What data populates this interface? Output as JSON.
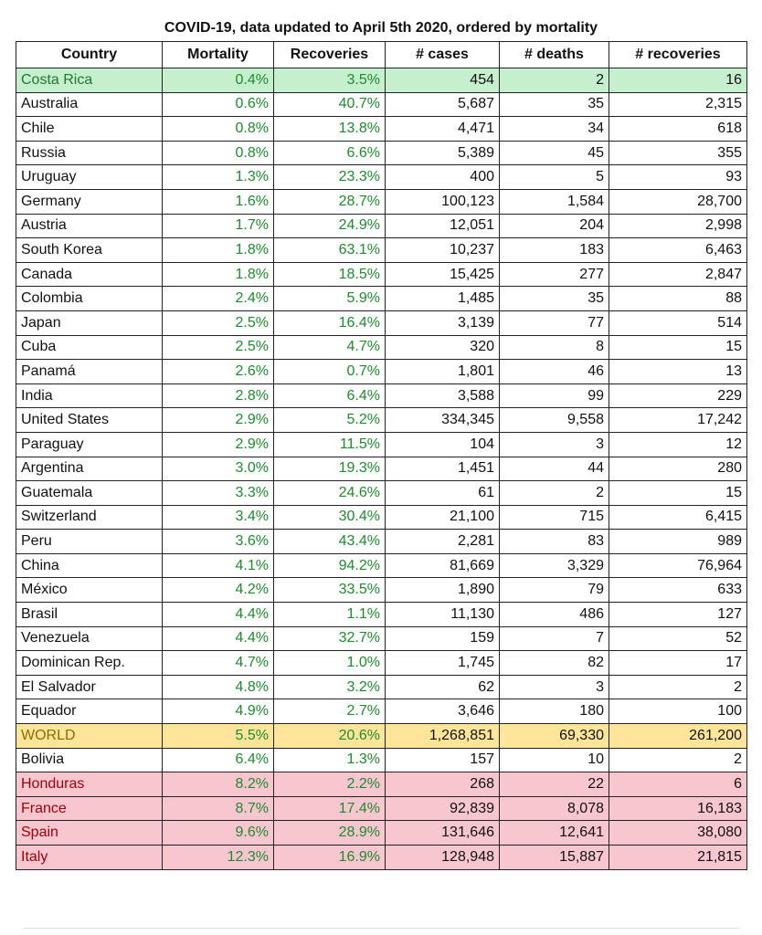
{
  "title": "COVID-19, data updated to April 5th 2020, ordered by mortality",
  "headers": [
    "Country",
    "Mortality",
    "Recoveries",
    "# cases",
    "# deaths",
    "# recoveries"
  ],
  "rows": [
    {
      "country": "Costa Rica",
      "mortality": "0.4%",
      "recoveries_pct": "3.5%",
      "cases": "454",
      "deaths": "2",
      "recoveries": "16",
      "highlight": "best"
    },
    {
      "country": "Australia",
      "mortality": "0.6%",
      "recoveries_pct": "40.7%",
      "cases": "5,687",
      "deaths": "35",
      "recoveries": "2,315",
      "highlight": ""
    },
    {
      "country": "Chile",
      "mortality": "0.8%",
      "recoveries_pct": "13.8%",
      "cases": "4,471",
      "deaths": "34",
      "recoveries": "618",
      "highlight": ""
    },
    {
      "country": "Russia",
      "mortality": "0.8%",
      "recoveries_pct": "6.6%",
      "cases": "5,389",
      "deaths": "45",
      "recoveries": "355",
      "highlight": ""
    },
    {
      "country": "Uruguay",
      "mortality": "1.3%",
      "recoveries_pct": "23.3%",
      "cases": "400",
      "deaths": "5",
      "recoveries": "93",
      "highlight": ""
    },
    {
      "country": "Germany",
      "mortality": "1.6%",
      "recoveries_pct": "28.7%",
      "cases": "100,123",
      "deaths": "1,584",
      "recoveries": "28,700",
      "highlight": ""
    },
    {
      "country": "Austria",
      "mortality": "1.7%",
      "recoveries_pct": "24.9%",
      "cases": "12,051",
      "deaths": "204",
      "recoveries": "2,998",
      "highlight": ""
    },
    {
      "country": "South Korea",
      "mortality": "1.8%",
      "recoveries_pct": "63.1%",
      "cases": "10,237",
      "deaths": "183",
      "recoveries": "6,463",
      "highlight": ""
    },
    {
      "country": "Canada",
      "mortality": "1.8%",
      "recoveries_pct": "18.5%",
      "cases": "15,425",
      "deaths": "277",
      "recoveries": "2,847",
      "highlight": ""
    },
    {
      "country": "Colombia",
      "mortality": "2.4%",
      "recoveries_pct": "5.9%",
      "cases": "1,485",
      "deaths": "35",
      "recoveries": "88",
      "highlight": ""
    },
    {
      "country": "Japan",
      "mortality": "2.5%",
      "recoveries_pct": "16.4%",
      "cases": "3,139",
      "deaths": "77",
      "recoveries": "514",
      "highlight": ""
    },
    {
      "country": "Cuba",
      "mortality": "2.5%",
      "recoveries_pct": "4.7%",
      "cases": "320",
      "deaths": "8",
      "recoveries": "15",
      "highlight": ""
    },
    {
      "country": "Panamá",
      "mortality": "2.6%",
      "recoveries_pct": "0.7%",
      "cases": "1,801",
      "deaths": "46",
      "recoveries": "13",
      "highlight": ""
    },
    {
      "country": "India",
      "mortality": "2.8%",
      "recoveries_pct": "6.4%",
      "cases": "3,588",
      "deaths": "99",
      "recoveries": "229",
      "highlight": ""
    },
    {
      "country": "United States",
      "mortality": "2.9%",
      "recoveries_pct": "5.2%",
      "cases": "334,345",
      "deaths": "9,558",
      "recoveries": "17,242",
      "highlight": ""
    },
    {
      "country": "Paraguay",
      "mortality": "2.9%",
      "recoveries_pct": "11.5%",
      "cases": "104",
      "deaths": "3",
      "recoveries": "12",
      "highlight": ""
    },
    {
      "country": "Argentina",
      "mortality": "3.0%",
      "recoveries_pct": "19.3%",
      "cases": "1,451",
      "deaths": "44",
      "recoveries": "280",
      "highlight": ""
    },
    {
      "country": "Guatemala",
      "mortality": "3.3%",
      "recoveries_pct": "24.6%",
      "cases": "61",
      "deaths": "2",
      "recoveries": "15",
      "highlight": ""
    },
    {
      "country": "Switzerland",
      "mortality": "3.4%",
      "recoveries_pct": "30.4%",
      "cases": "21,100",
      "deaths": "715",
      "recoveries": "6,415",
      "highlight": ""
    },
    {
      "country": "Peru",
      "mortality": "3.6%",
      "recoveries_pct": "43.4%",
      "cases": "2,281",
      "deaths": "83",
      "recoveries": "989",
      "highlight": ""
    },
    {
      "country": "China",
      "mortality": "4.1%",
      "recoveries_pct": "94.2%",
      "cases": "81,669",
      "deaths": "3,329",
      "recoveries": "76,964",
      "highlight": ""
    },
    {
      "country": "México",
      "mortality": "4.2%",
      "recoveries_pct": "33.5%",
      "cases": "1,890",
      "deaths": "79",
      "recoveries": "633",
      "highlight": ""
    },
    {
      "country": "Brasil",
      "mortality": "4.4%",
      "recoveries_pct": "1.1%",
      "cases": "11,130",
      "deaths": "486",
      "recoveries": "127",
      "highlight": ""
    },
    {
      "country": "Venezuela",
      "mortality": "4.4%",
      "recoveries_pct": "32.7%",
      "cases": "159",
      "deaths": "7",
      "recoveries": "52",
      "highlight": ""
    },
    {
      "country": "Dominican Rep.",
      "mortality": "4.7%",
      "recoveries_pct": "1.0%",
      "cases": "1,745",
      "deaths": "82",
      "recoveries": "17",
      "highlight": ""
    },
    {
      "country": "El Salvador",
      "mortality": "4.8%",
      "recoveries_pct": "3.2%",
      "cases": "62",
      "deaths": "3",
      "recoveries": "2",
      "highlight": ""
    },
    {
      "country": "Equador",
      "mortality": "4.9%",
      "recoveries_pct": "2.7%",
      "cases": "3,646",
      "deaths": "180",
      "recoveries": "100",
      "highlight": ""
    },
    {
      "country": "WORLD",
      "mortality": "5.5%",
      "recoveries_pct": "20.6%",
      "cases": "1,268,851",
      "deaths": "69,330",
      "recoveries": "261,200",
      "highlight": "world"
    },
    {
      "country": "Bolivia",
      "mortality": "6.4%",
      "recoveries_pct": "1.3%",
      "cases": "157",
      "deaths": "10",
      "recoveries": "2",
      "highlight": ""
    },
    {
      "country": "Honduras",
      "mortality": "8.2%",
      "recoveries_pct": "2.2%",
      "cases": "268",
      "deaths": "22",
      "recoveries": "6",
      "highlight": "bad"
    },
    {
      "country": "France",
      "mortality": "8.7%",
      "recoveries_pct": "17.4%",
      "cases": "92,839",
      "deaths": "8,078",
      "recoveries": "16,183",
      "highlight": "bad"
    },
    {
      "country": "Spain",
      "mortality": "9.6%",
      "recoveries_pct": "28.9%",
      "cases": "131,646",
      "deaths": "12,641",
      "recoveries": "38,080",
      "highlight": "bad"
    },
    {
      "country": "Italy",
      "mortality": "12.3%",
      "recoveries_pct": "16.9%",
      "cases": "128,948",
      "deaths": "15,887",
      "recoveries": "21,815",
      "highlight": "bad"
    }
  ],
  "colors": {
    "best_row": "#c6efce",
    "world_row": "#ffe599",
    "bad_row": "#f8c6cf",
    "percent_text": "#1f8a2e"
  }
}
